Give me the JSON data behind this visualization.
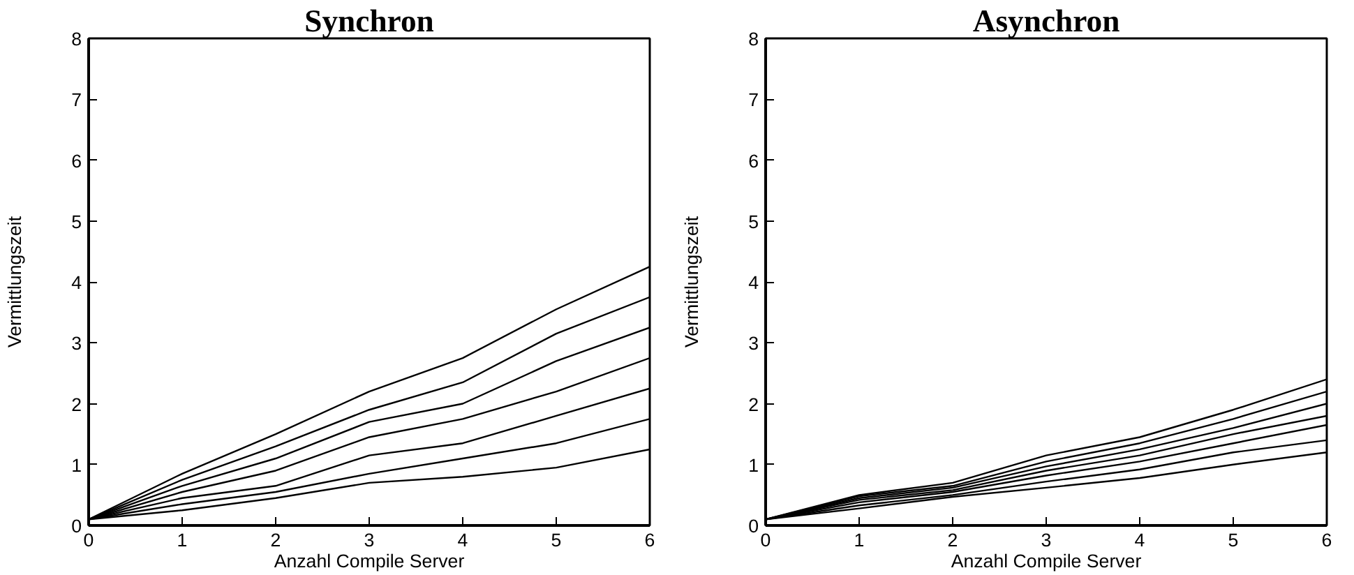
{
  "chart_data": [
    {
      "type": "line",
      "title": "Synchron",
      "xlabel": "Anzahl Compile Server",
      "ylabel": "Vermittlungszeit",
      "x": [
        0,
        1,
        2,
        3,
        4,
        5,
        6
      ],
      "xlim": [
        0,
        6
      ],
      "ylim": [
        0,
        8
      ],
      "xticks": [
        0,
        1,
        2,
        3,
        4,
        5,
        6
      ],
      "yticks": [
        0,
        1,
        2,
        3,
        4,
        5,
        6,
        7,
        8
      ],
      "grid": false,
      "marker": "none",
      "line_style": "solid",
      "series": [
        {
          "color": "#000000",
          "values": [
            0.1,
            0.85,
            1.5,
            2.2,
            2.75,
            3.55,
            4.25
          ]
        },
        {
          "color": "#000000",
          "values": [
            0.1,
            0.75,
            1.3,
            1.9,
            2.35,
            3.15,
            3.75
          ]
        },
        {
          "color": "#000000",
          "values": [
            0.1,
            0.65,
            1.1,
            1.7,
            2.0,
            2.7,
            3.25
          ]
        },
        {
          "color": "#000000",
          "values": [
            0.1,
            0.55,
            0.9,
            1.45,
            1.75,
            2.2,
            2.75
          ]
        },
        {
          "color": "#000000",
          "values": [
            0.1,
            0.45,
            0.65,
            1.15,
            1.35,
            1.8,
            2.25
          ]
        },
        {
          "color": "#000000",
          "values": [
            0.1,
            0.35,
            0.55,
            0.85,
            1.1,
            1.35,
            1.75
          ]
        },
        {
          "color": "#000000",
          "values": [
            0.1,
            0.25,
            0.45,
            0.7,
            0.8,
            0.95,
            1.25
          ]
        }
      ]
    },
    {
      "type": "line",
      "title": "Asynchron",
      "xlabel": "Anzahl Compile Server",
      "ylabel": "Vermittlungszeit",
      "x": [
        0,
        1,
        2,
        3,
        4,
        5,
        6
      ],
      "xlim": [
        0,
        6
      ],
      "ylim": [
        0,
        8
      ],
      "xticks": [
        0,
        1,
        2,
        3,
        4,
        5,
        6
      ],
      "yticks": [
        0,
        1,
        2,
        3,
        4,
        5,
        6,
        7,
        8
      ],
      "grid": false,
      "marker": "none",
      "line_style": "solid",
      "series": [
        {
          "color": "#000000",
          "values": [
            0.1,
            0.5,
            0.7,
            1.15,
            1.45,
            1.9,
            2.4
          ]
        },
        {
          "color": "#000000",
          "values": [
            0.1,
            0.48,
            0.65,
            1.05,
            1.35,
            1.75,
            2.2
          ]
        },
        {
          "color": "#000000",
          "values": [
            0.1,
            0.45,
            0.62,
            0.97,
            1.25,
            1.6,
            2.0
          ]
        },
        {
          "color": "#000000",
          "values": [
            0.1,
            0.42,
            0.58,
            0.9,
            1.15,
            1.5,
            1.8
          ]
        },
        {
          "color": "#000000",
          "values": [
            0.1,
            0.38,
            0.55,
            0.82,
            1.05,
            1.35,
            1.65
          ]
        },
        {
          "color": "#000000",
          "values": [
            0.1,
            0.33,
            0.5,
            0.72,
            0.92,
            1.2,
            1.4
          ]
        },
        {
          "color": "#000000",
          "values": [
            0.1,
            0.28,
            0.47,
            0.62,
            0.78,
            1.0,
            1.2
          ]
        }
      ]
    }
  ]
}
